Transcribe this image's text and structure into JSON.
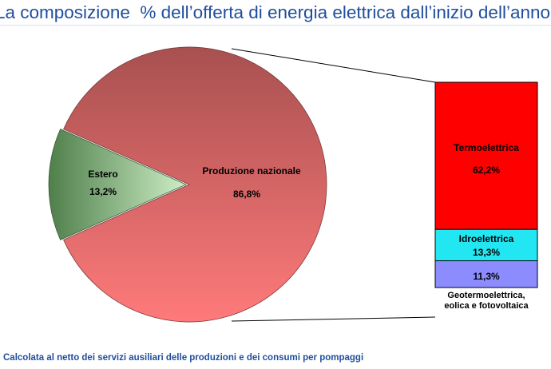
{
  "page": {
    "title": "La composizione  % dell’offerta di energia elettrica dall’inizio dell’anno",
    "footnote": "Calcolata al netto dei servizi ausiliari delle produzioni e dei consumi per pompaggi"
  },
  "chart_data": [
    {
      "type": "pie",
      "slices": [
        {
          "name": "Estero",
          "value": 13.2,
          "label": "13,2%",
          "color": "#b8e0b0"
        },
        {
          "name": "Produzione nazionale",
          "value": 86.8,
          "label": "86,8%",
          "color": "#d86868"
        }
      ],
      "exploded_slice": "Produzione nazionale"
    },
    {
      "type": "bar",
      "stacked": true,
      "segments": [
        {
          "name": "Termoelettrica",
          "value": 62.2,
          "label": "62,2%",
          "color": "#ff0000"
        },
        {
          "name": "Idroelettrica",
          "value": 13.3,
          "label": "13,3%",
          "color": "#22e6f2"
        },
        {
          "name": "Geotermoelettrica,",
          "name_line2": "eolica e fotovoltaica",
          "value": 11.3,
          "label": "11,3%",
          "color": "#8c8cff"
        }
      ]
    }
  ]
}
